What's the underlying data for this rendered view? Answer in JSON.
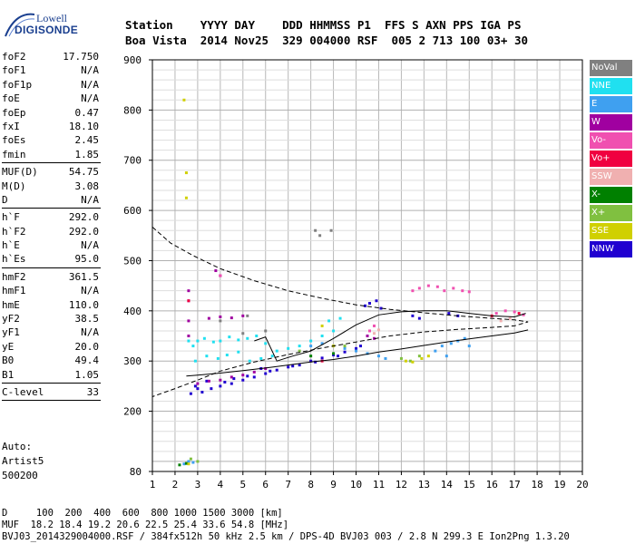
{
  "logo": {
    "line1": "Lowell",
    "line2": "DIGISONDE"
  },
  "header": {
    "line1": "Station    YYYY DAY    DDD HHMMSS P1  FFS S AXN PPS IGA PS",
    "line2": "Boa Vista  2014 Nov25  329 004000 RSF  005 2 713 100 03+ 30"
  },
  "params": [
    [
      [
        "foF2",
        "17.750"
      ],
      [
        "foF1",
        "N/A"
      ],
      [
        "foF1p",
        "N/A"
      ],
      [
        "foE",
        "N/A"
      ],
      [
        "foEp",
        "0.47"
      ],
      [
        "fxI",
        "18.10"
      ],
      [
        "foEs",
        "2.45"
      ],
      [
        "fmin",
        "1.85"
      ]
    ],
    [
      [
        "MUF(D)",
        "54.75"
      ],
      [
        "M(D)",
        "3.08"
      ],
      [
        "D",
        "N/A"
      ]
    ],
    [
      [
        "h`F",
        "292.0"
      ],
      [
        "h`F2",
        "292.0"
      ],
      [
        "h`E",
        "N/A"
      ],
      [
        "h`Es",
        "95.0"
      ]
    ],
    [
      [
        "hmF2",
        "361.5"
      ],
      [
        "hmF1",
        "N/A"
      ],
      [
        "hmE",
        "110.0"
      ],
      [
        "yF2",
        "38.5"
      ],
      [
        "yF1",
        "N/A"
      ],
      [
        "yE",
        "20.0"
      ],
      [
        "B0",
        "49.4"
      ],
      [
        "B1",
        "1.05"
      ]
    ],
    [
      [
        "C-level",
        "33"
      ]
    ]
  ],
  "auto": {
    "line1": "Auto:",
    "line2": "Artist5",
    "line3": "500200"
  },
  "legend": [
    {
      "label": "NoVal",
      "color": "#808080"
    },
    {
      "label": "NNE",
      "color": "#20e0f0"
    },
    {
      "label": "E",
      "color": "#3fa0f0"
    },
    {
      "label": "W",
      "color": "#a000a0"
    },
    {
      "label": "Vo-",
      "color": "#f050b0"
    },
    {
      "label": "Vo+",
      "color": "#f00040"
    },
    {
      "label": "SSW",
      "color": "#f0b0b0"
    },
    {
      "label": "X-",
      "color": "#008000"
    },
    {
      "label": "X+",
      "color": "#80c040"
    },
    {
      "label": "SSE",
      "color": "#d0d000"
    },
    {
      "label": "NNW",
      "color": "#2000d0"
    }
  ],
  "footer": {
    "line1": "D     100  200  400  600  800 1000 1500 3000 [km]",
    "line2": "MUF  18.2 18.4 19.2 20.6 22.5 25.4 33.6 54.8 [MHz]",
    "line3": "BVJ03_2014329004000.RSF / 384fx512h 50 kHz 2.5 km / DPS-4D BVJ03 003 / 2.8 N 299.3 E Ion2Png 1.3.20"
  },
  "chart_data": {
    "type": "scatter",
    "title": "",
    "xlabel": "",
    "ylabel": "",
    "xlim": [
      1,
      20
    ],
    "ylim": [
      80,
      900
    ],
    "xticks": [
      1,
      2,
      3,
      4,
      5,
      6,
      7,
      8,
      9,
      10,
      11,
      12,
      13,
      14,
      15,
      16,
      17,
      18,
      19,
      20
    ],
    "yticks": [
      80,
      200,
      300,
      400,
      500,
      600,
      700,
      800,
      900
    ],
    "grid": true,
    "series": [
      {
        "color": "#2000d0",
        "points": [
          [
            2.7,
            235
          ],
          [
            3.2,
            238
          ],
          [
            3.6,
            245
          ],
          [
            4.0,
            250
          ],
          [
            4.5,
            255
          ],
          [
            5.0,
            262
          ],
          [
            5.5,
            268
          ],
          [
            6.0,
            275
          ],
          [
            6.5,
            282
          ],
          [
            7.0,
            288
          ],
          [
            7.5,
            292
          ],
          [
            8.0,
            300
          ],
          [
            8.5,
            306
          ],
          [
            9.0,
            312
          ],
          [
            9.5,
            318
          ],
          [
            10.0,
            325
          ],
          [
            10.4,
            410
          ],
          [
            10.6,
            415
          ],
          [
            10.9,
            420
          ],
          [
            11.1,
            405
          ],
          [
            12.5,
            390
          ],
          [
            12.8,
            385
          ],
          [
            14.1,
            395
          ],
          [
            14.5,
            390
          ],
          [
            3.0,
            245
          ],
          [
            4.2,
            258
          ],
          [
            5.2,
            270
          ],
          [
            6.2,
            280
          ],
          [
            7.2,
            290
          ],
          [
            8.2,
            298
          ],
          [
            9.2,
            310
          ],
          [
            10.2,
            330
          ],
          [
            2.9,
            250
          ],
          [
            3.4,
            260
          ],
          [
            4.6,
            265
          ],
          [
            5.8,
            285
          ]
        ]
      },
      {
        "color": "#a000a0",
        "points": [
          [
            2.6,
            350
          ],
          [
            2.6,
            380
          ],
          [
            2.6,
            420
          ],
          [
            2.6,
            440
          ],
          [
            3.0,
            255
          ],
          [
            3.5,
            260
          ],
          [
            4.0,
            262
          ],
          [
            4.5,
            268
          ],
          [
            5.0,
            272
          ],
          [
            5.5,
            278
          ],
          [
            6.0,
            285
          ],
          [
            3.5,
            385
          ],
          [
            4.0,
            388
          ],
          [
            4.5,
            386
          ],
          [
            5.0,
            390
          ],
          [
            10.5,
            350
          ],
          [
            10.8,
            345
          ],
          [
            3.8,
            480
          ],
          [
            4.0,
            470
          ]
        ]
      },
      {
        "color": "#20e0f0",
        "points": [
          [
            2.8,
            330
          ],
          [
            3.0,
            340
          ],
          [
            3.3,
            345
          ],
          [
            3.7,
            338
          ],
          [
            4.0,
            340
          ],
          [
            4.4,
            348
          ],
          [
            4.8,
            342
          ],
          [
            5.2,
            345
          ],
          [
            5.6,
            350
          ],
          [
            6.0,
            335
          ],
          [
            6.5,
            320
          ],
          [
            7.0,
            325
          ],
          [
            7.5,
            330
          ],
          [
            8.0,
            340
          ],
          [
            8.5,
            350
          ],
          [
            9.0,
            360
          ],
          [
            2.9,
            300
          ],
          [
            3.4,
            310
          ],
          [
            3.9,
            305
          ],
          [
            4.3,
            312
          ],
          [
            4.8,
            318
          ],
          [
            5.3,
            300
          ],
          [
            5.8,
            305
          ],
          [
            6.3,
            310
          ],
          [
            2.6,
            340
          ],
          [
            8.8,
            380
          ],
          [
            9.3,
            385
          ]
        ]
      },
      {
        "color": "#3fa0f0",
        "points": [
          [
            2.4,
            95
          ],
          [
            2.6,
            100
          ],
          [
            2.8,
            98
          ],
          [
            8.0,
            330
          ],
          [
            8.5,
            335
          ],
          [
            9.0,
            330
          ],
          [
            9.5,
            325
          ],
          [
            10.0,
            320
          ],
          [
            10.5,
            315
          ],
          [
            11.0,
            310
          ],
          [
            11.3,
            305
          ],
          [
            13.5,
            320
          ],
          [
            13.8,
            330
          ],
          [
            14.2,
            335
          ],
          [
            14.5,
            340
          ],
          [
            14.8,
            345
          ],
          [
            15.0,
            330
          ],
          [
            14.0,
            310
          ]
        ]
      },
      {
        "color": "#f050b0",
        "points": [
          [
            12.5,
            440
          ],
          [
            12.8,
            445
          ],
          [
            13.2,
            450
          ],
          [
            13.6,
            448
          ],
          [
            13.9,
            440
          ],
          [
            14.3,
            445
          ],
          [
            14.7,
            440
          ],
          [
            15.0,
            438
          ],
          [
            16.2,
            395
          ],
          [
            16.6,
            400
          ],
          [
            17.0,
            398
          ],
          [
            17.4,
            392
          ],
          [
            10.6,
            360
          ],
          [
            10.8,
            370
          ],
          [
            4.0,
            470
          ]
        ]
      },
      {
        "color": "#f00040",
        "points": [
          [
            2.6,
            420
          ],
          [
            16.0,
            390
          ],
          [
            17.2,
            395
          ],
          [
            8.5,
            300
          ]
        ]
      },
      {
        "color": "#f0b0b0",
        "points": [
          [
            10.8,
            355
          ],
          [
            11.0,
            362
          ],
          [
            16.4,
            380
          ],
          [
            16.8,
            385
          ]
        ]
      },
      {
        "color": "#008000",
        "points": [
          [
            2.2,
            93
          ],
          [
            2.5,
            96
          ],
          [
            8.0,
            310
          ],
          [
            9.0,
            315
          ]
        ]
      },
      {
        "color": "#80c040",
        "points": [
          [
            2.7,
            105
          ],
          [
            3.0,
            100
          ],
          [
            12.0,
            305
          ],
          [
            12.4,
            300
          ],
          [
            12.8,
            310
          ],
          [
            7.5,
            320
          ],
          [
            9.5,
            330
          ]
        ]
      },
      {
        "color": "#d0d000",
        "points": [
          [
            2.4,
            820
          ],
          [
            2.5,
            675
          ],
          [
            2.5,
            625
          ],
          [
            12.2,
            300
          ],
          [
            12.5,
            298
          ],
          [
            12.9,
            305
          ],
          [
            13.2,
            310
          ],
          [
            8.5,
            370
          ],
          [
            9.0,
            330
          ],
          [
            2.6,
            95
          ]
        ]
      },
      {
        "color": "#808080",
        "points": [
          [
            4.0,
            380
          ],
          [
            5.2,
            390
          ],
          [
            8.2,
            560
          ],
          [
            8.4,
            550
          ],
          [
            8.9,
            560
          ],
          [
            5.0,
            355
          ],
          [
            6.0,
            360
          ]
        ]
      }
    ],
    "curves": [
      {
        "name": "trace-mid",
        "style": "solid",
        "points": [
          [
            5.5,
            340
          ],
          [
            6.0,
            348
          ],
          [
            6.5,
            300
          ],
          [
            7.2,
            310
          ],
          [
            8.0,
            320
          ],
          [
            9.0,
            345
          ],
          [
            10.0,
            372
          ],
          [
            11.0,
            392
          ],
          [
            12.0,
            398
          ],
          [
            13.0,
            400
          ],
          [
            14.0,
            400
          ],
          [
            15.0,
            395
          ],
          [
            16.0,
            390
          ],
          [
            17.0,
            388
          ],
          [
            17.5,
            395
          ]
        ]
      },
      {
        "name": "trace-lower",
        "style": "solid",
        "points": [
          [
            2.5,
            270
          ],
          [
            3.0,
            272
          ],
          [
            4.0,
            276
          ],
          [
            5.0,
            281
          ],
          [
            6.0,
            286
          ],
          [
            7.0,
            292
          ],
          [
            8.0,
            298
          ],
          [
            9.0,
            303
          ],
          [
            10.0,
            310
          ],
          [
            11.0,
            318
          ],
          [
            12.0,
            324
          ],
          [
            13.0,
            331
          ],
          [
            14.0,
            338
          ],
          [
            15.0,
            344
          ],
          [
            16.0,
            350
          ],
          [
            17.0,
            356
          ],
          [
            17.6,
            362
          ]
        ]
      },
      {
        "name": "profile",
        "style": "dashed",
        "points": [
          [
            1.0,
            567
          ],
          [
            1.8,
            535
          ],
          [
            2.8,
            510
          ],
          [
            4.0,
            484
          ],
          [
            5.5,
            460
          ],
          [
            7.0,
            440
          ],
          [
            8.5,
            425
          ],
          [
            10.0,
            412
          ],
          [
            11.5,
            403
          ],
          [
            13.0,
            396
          ],
          [
            14.5,
            390
          ],
          [
            16.0,
            385
          ],
          [
            17.0,
            382
          ],
          [
            17.6,
            378
          ],
          [
            17.0,
            370
          ],
          [
            16.0,
            367
          ],
          [
            14.5,
            363
          ],
          [
            13.0,
            358
          ],
          [
            11.5,
            350
          ],
          [
            10.0,
            338
          ],
          [
            8.5,
            326
          ],
          [
            7.0,
            313
          ],
          [
            5.5,
            298
          ],
          [
            4.0,
            280
          ],
          [
            3.0,
            262
          ],
          [
            2.0,
            245
          ],
          [
            1.0,
            229
          ]
        ]
      }
    ]
  }
}
